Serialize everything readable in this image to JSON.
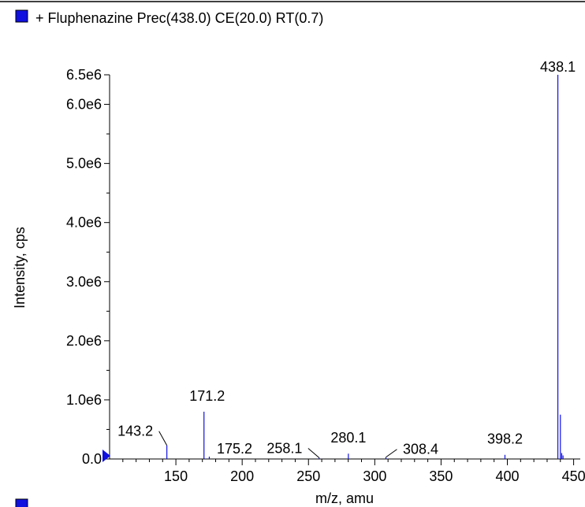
{
  "legend": {
    "label": "+ Fluphenazine Prec(438.0) CE(20.0) RT(0.7)",
    "color": "#1010e0"
  },
  "chart_data": {
    "type": "bar",
    "title": "",
    "xlabel": "m/z, amu",
    "ylabel": "Intensity, cps",
    "xlim": [
      100,
      455
    ],
    "ylim": [
      0,
      6500000.0
    ],
    "x_ticks": [
      150,
      200,
      250,
      300,
      350,
      400,
      450
    ],
    "x_tick_labels": [
      "150",
      "200",
      "250",
      "300",
      "350",
      "400",
      "450"
    ],
    "y_ticks": [
      0,
      1000000,
      2000000,
      3000000,
      4000000,
      5000000,
      6000000,
      6500000
    ],
    "y_tick_labels": [
      "0.0",
      "1.0e6",
      "2.0e6",
      "3.0e6",
      "4.0e6",
      "5.0e6",
      "6.0e6",
      "6.5e6"
    ],
    "series": [
      {
        "color": "#1010e0",
        "x": [
          143.2,
          171.2,
          175.2,
          258.1,
          280.1,
          308.4,
          398.2,
          438.1,
          440.0,
          441.0,
          442.0
        ],
        "values": [
          230000,
          800000,
          40000,
          20000,
          90000,
          30000,
          70000,
          6500000,
          750000,
          100000,
          60000
        ]
      }
    ],
    "peak_labels": [
      {
        "x": 143.2,
        "text": "143.2"
      },
      {
        "x": 171.2,
        "text": "171.2"
      },
      {
        "x": 175.2,
        "text": "175.2"
      },
      {
        "x": 258.1,
        "text": "258.1"
      },
      {
        "x": 280.1,
        "text": "280.1"
      },
      {
        "x": 308.4,
        "text": "308.4"
      },
      {
        "x": 398.2,
        "text": "398.2"
      },
      {
        "x": 438.1,
        "text": "438.1"
      }
    ]
  }
}
